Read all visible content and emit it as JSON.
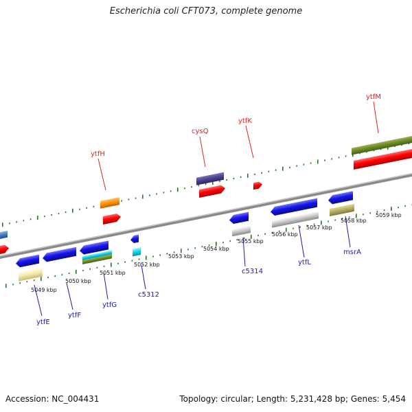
{
  "title": "Escherichia coli CFT073, complete genome",
  "footer": {
    "accession": "Accession: NC_004431",
    "topology": "Topology: circular; Length: 5,231,428 bp; Genes: 5,454"
  },
  "scale_labels": [
    "5049 kbp",
    "5050 kbp",
    "5051 kbp",
    "5052 kbp",
    "5053 kbp",
    "5054 kbp",
    "5055 kbp",
    "5056 kbp",
    "5057 kbp",
    "5058 kbp",
    "5059 kbp"
  ],
  "top_gene_labels": [
    "ytfH",
    "cysQ",
    "ytfK",
    "ytfM"
  ],
  "bottom_gene_labels": [
    "ytfE",
    "ytfF",
    "ytfG",
    "c5312",
    "c5314",
    "ytfL",
    "msrA"
  ],
  "colors": {
    "forward_cds": "#ff0000",
    "reverse_cds": "#1414e6",
    "backbone": "#8c8c8c",
    "ticks": "#1f7a1f"
  }
}
